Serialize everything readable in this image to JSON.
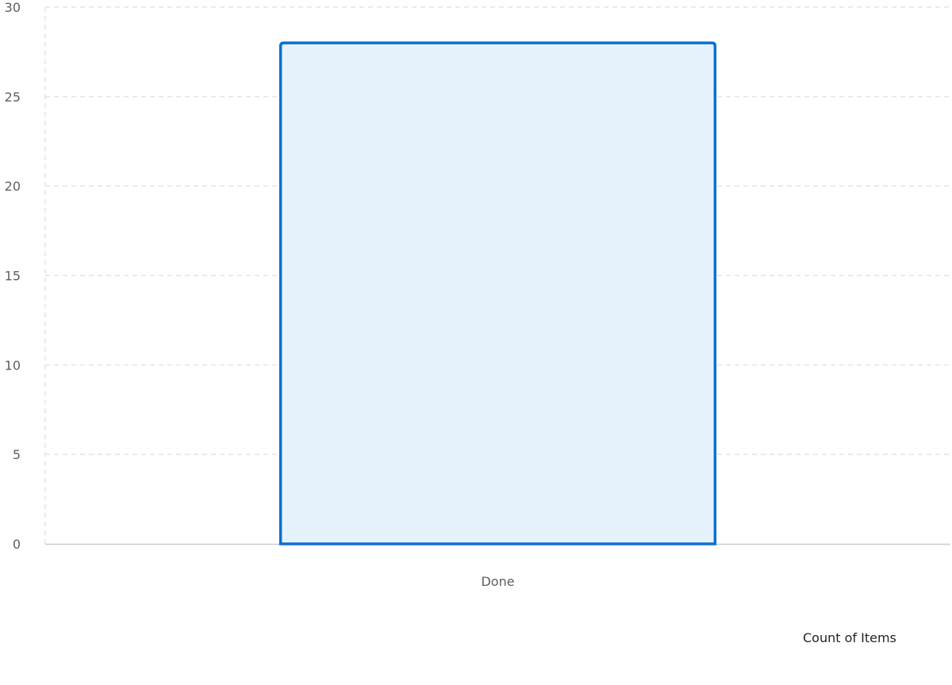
{
  "chart_data": {
    "type": "bar",
    "categories": [
      "Done"
    ],
    "series": [
      {
        "name": "Count of Items",
        "values": [
          28
        ]
      }
    ],
    "ylim": [
      0,
      30
    ],
    "yticks": [
      0,
      5,
      10,
      15,
      20,
      25,
      30
    ],
    "grid": true,
    "legend_position": "bottom-right",
    "colors": {
      "bar_fill": "#e6f3fc",
      "bar_stroke": "#0a6fd3",
      "grid": "#e3e3e3",
      "axis": "#c8ccd4"
    }
  }
}
